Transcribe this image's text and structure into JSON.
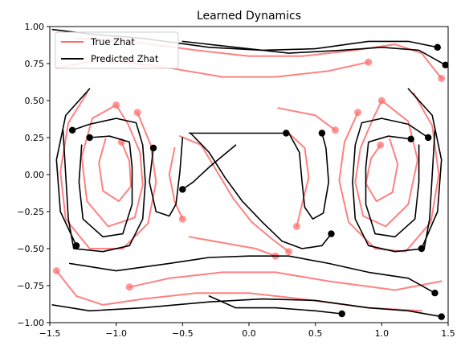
{
  "chart_data": {
    "type": "line",
    "title": "Learned Dynamics",
    "xlabel": "",
    "ylabel": "",
    "xlim": [
      -1.5,
      1.5
    ],
    "ylim": [
      -1.0,
      1.0
    ],
    "xticks": [
      -1.5,
      -1.0,
      -0.5,
      0.0,
      0.5,
      1.0,
      1.5
    ],
    "xtick_labels": [
      "−1.5",
      "−1.0",
      "−0.5",
      "0.0",
      "0.5",
      "1.0",
      "1.5"
    ],
    "yticks": [
      -1.0,
      -0.75,
      -0.5,
      -0.25,
      0.0,
      0.25,
      0.5,
      0.75,
      1.0
    ],
    "ytick_labels": [
      "−1.00",
      "−0.75",
      "−0.50",
      "−0.25",
      "0.00",
      "0.25",
      "0.50",
      "0.75",
      "1.00"
    ],
    "grid": false,
    "legend_position": "top-left",
    "series": [
      {
        "name": "True Zhat",
        "color": "#ff6b6b",
        "marker": "circle-at-end",
        "trajectories": [
          [
            [
              -1.0,
              0.47
            ],
            [
              -1.18,
              0.38
            ],
            [
              -1.26,
              0.12
            ],
            [
              -1.22,
              -0.18
            ],
            [
              -1.06,
              -0.35
            ],
            [
              -0.86,
              -0.29
            ],
            [
              -0.8,
              -0.07
            ],
            [
              -0.82,
              0.15
            ],
            [
              -0.91,
              0.34
            ],
            [
              -1.0,
              0.47
            ]
          ],
          [
            [
              -1.08,
              0.24
            ],
            [
              -1.13,
              0.08
            ],
            [
              -1.1,
              -0.11
            ],
            [
              -0.98,
              -0.18
            ],
            [
              -0.89,
              -0.08
            ],
            [
              -0.9,
              0.09
            ],
            [
              -0.96,
              0.22
            ]
          ],
          [
            [
              -1.22,
              0.55
            ],
            [
              -1.36,
              0.35
            ],
            [
              -1.42,
              0.02
            ],
            [
              -1.38,
              -0.3
            ],
            [
              -1.2,
              -0.5
            ],
            [
              -0.95,
              -0.5
            ],
            [
              -0.76,
              -0.33
            ],
            [
              -0.7,
              -0.05
            ],
            [
              -0.74,
              0.2
            ],
            [
              -0.84,
              0.42
            ]
          ],
          [
            [
              1.0,
              0.5
            ],
            [
              1.2,
              0.36
            ],
            [
              1.27,
              0.1
            ],
            [
              1.2,
              -0.2
            ],
            [
              1.03,
              -0.35
            ],
            [
              0.86,
              -0.28
            ],
            [
              0.8,
              -0.05
            ],
            [
              0.84,
              0.18
            ],
            [
              0.93,
              0.37
            ],
            [
              1.0,
              0.5
            ]
          ],
          [
            [
              1.06,
              0.24
            ],
            [
              1.12,
              0.07
            ],
            [
              1.08,
              -0.12
            ],
            [
              0.96,
              -0.18
            ],
            [
              0.88,
              -0.06
            ],
            [
              0.92,
              0.11
            ],
            [
              0.99,
              0.2
            ]
          ],
          [
            [
              1.24,
              0.55
            ],
            [
              1.38,
              0.33
            ],
            [
              1.43,
              0.0
            ],
            [
              1.37,
              -0.32
            ],
            [
              1.18,
              -0.52
            ],
            [
              0.95,
              -0.5
            ],
            [
              0.75,
              -0.32
            ],
            [
              0.68,
              -0.04
            ],
            [
              0.72,
              0.22
            ],
            [
              0.82,
              0.42
            ]
          ],
          [
            [
              -1.3,
              0.92
            ],
            [
              -0.9,
              0.9
            ],
            [
              -0.4,
              0.84
            ],
            [
              0.0,
              0.8
            ],
            [
              0.4,
              0.8
            ],
            [
              0.8,
              0.84
            ],
            [
              1.1,
              0.88
            ],
            [
              1.3,
              0.82
            ],
            [
              1.45,
              0.65
            ]
          ],
          [
            [
              -1.45,
              0.72
            ],
            [
              -1.1,
              0.78
            ],
            [
              -0.6,
              0.72
            ],
            [
              -0.2,
              0.66
            ],
            [
              0.2,
              0.66
            ],
            [
              0.6,
              0.7
            ],
            [
              0.9,
              0.76
            ]
          ],
          [
            [
              1.3,
              -0.92
            ],
            [
              0.9,
              -0.9
            ],
            [
              0.4,
              -0.84
            ],
            [
              0.0,
              -0.8
            ],
            [
              -0.4,
              -0.8
            ],
            [
              -0.8,
              -0.84
            ],
            [
              -1.1,
              -0.88
            ],
            [
              -1.3,
              -0.82
            ],
            [
              -1.45,
              -0.65
            ]
          ],
          [
            [
              1.45,
              -0.72
            ],
            [
              1.1,
              -0.78
            ],
            [
              0.6,
              -0.72
            ],
            [
              0.2,
              -0.66
            ],
            [
              -0.2,
              -0.66
            ],
            [
              -0.6,
              -0.7
            ],
            [
              -0.9,
              -0.76
            ]
          ],
          [
            [
              -0.52,
              0.26
            ],
            [
              -0.36,
              0.2
            ],
            [
              -0.24,
              0.02
            ],
            [
              -0.12,
              -0.16
            ],
            [
              0.02,
              -0.32
            ],
            [
              0.18,
              -0.44
            ],
            [
              0.3,
              -0.52
            ]
          ],
          [
            [
              0.3,
              0.28
            ],
            [
              0.42,
              0.18
            ],
            [
              0.45,
              -0.02
            ],
            [
              0.4,
              -0.2
            ],
            [
              0.36,
              -0.35
            ]
          ],
          [
            [
              -0.56,
              0.18
            ],
            [
              -0.6,
              0.0
            ],
            [
              -0.56,
              -0.18
            ],
            [
              -0.5,
              -0.3
            ]
          ],
          [
            [
              0.22,
              0.45
            ],
            [
              0.5,
              0.4
            ],
            [
              0.65,
              0.3
            ]
          ],
          [
            [
              -0.45,
              -0.42
            ],
            [
              -0.2,
              -0.46
            ],
            [
              0.05,
              -0.5
            ],
            [
              0.2,
              -0.55
            ]
          ]
        ]
      },
      {
        "name": "Predicted Zhat",
        "color": "#000000",
        "marker": "circle-at-end",
        "trajectories": [
          [
            [
              -1.48,
              0.98
            ],
            [
              -1.2,
              0.95
            ],
            [
              -0.8,
              0.92
            ],
            [
              -0.3,
              0.86
            ],
            [
              0.1,
              0.84
            ],
            [
              0.5,
              0.85
            ],
            [
              0.9,
              0.9
            ],
            [
              1.2,
              0.9
            ],
            [
              1.42,
              0.86
            ]
          ],
          [
            [
              -0.5,
              0.9
            ],
            [
              -0.1,
              0.86
            ],
            [
              0.3,
              0.82
            ],
            [
              0.7,
              0.84
            ],
            [
              1.0,
              0.86
            ],
            [
              1.28,
              0.84
            ],
            [
              1.48,
              0.74
            ]
          ],
          [
            [
              -1.4,
              0.3
            ],
            [
              -1.38,
              0.0
            ],
            [
              -1.36,
              -0.3
            ],
            [
              -1.32,
              -0.5
            ],
            [
              -1.1,
              -0.52
            ],
            [
              -0.9,
              -0.48
            ],
            [
              -0.8,
              -0.3
            ],
            [
              -0.78,
              -0.05
            ],
            [
              -0.8,
              0.2
            ],
            [
              -0.85,
              0.35
            ],
            [
              -1.0,
              0.38
            ],
            [
              -1.2,
              0.34
            ],
            [
              -1.33,
              0.3
            ]
          ],
          [
            [
              -1.26,
              0.2
            ],
            [
              -1.28,
              -0.05
            ],
            [
              -1.25,
              -0.3
            ],
            [
              -1.1,
              -0.42
            ],
            [
              -0.95,
              -0.4
            ],
            [
              -0.88,
              -0.2
            ],
            [
              -0.88,
              0.05
            ],
            [
              -0.9,
              0.22
            ],
            [
              -1.05,
              0.26
            ],
            [
              -1.2,
              0.25
            ]
          ],
          [
            [
              1.4,
              0.3
            ],
            [
              1.38,
              0.0
            ],
            [
              1.36,
              -0.3
            ],
            [
              1.32,
              -0.5
            ],
            [
              1.1,
              -0.52
            ],
            [
              0.9,
              -0.48
            ],
            [
              0.8,
              -0.3
            ],
            [
              0.78,
              -0.05
            ],
            [
              0.8,
              0.2
            ],
            [
              0.85,
              0.35
            ],
            [
              1.0,
              0.38
            ],
            [
              1.2,
              0.34
            ],
            [
              1.35,
              0.25
            ]
          ],
          [
            [
              1.28,
              0.2
            ],
            [
              1.28,
              -0.05
            ],
            [
              1.25,
              -0.3
            ],
            [
              1.1,
              -0.42
            ],
            [
              0.95,
              -0.4
            ],
            [
              0.88,
              -0.2
            ],
            [
              0.88,
              0.05
            ],
            [
              0.9,
              0.22
            ],
            [
              1.05,
              0.26
            ],
            [
              1.22,
              0.24
            ]
          ],
          [
            [
              -0.44,
              0.28
            ],
            [
              -0.3,
              0.15
            ],
            [
              -0.18,
              -0.02
            ],
            [
              -0.05,
              -0.18
            ],
            [
              0.1,
              -0.32
            ],
            [
              0.25,
              -0.45
            ],
            [
              0.4,
              -0.5
            ],
            [
              0.55,
              -0.48
            ],
            [
              0.62,
              -0.4
            ]
          ],
          [
            [
              -0.5,
              0.25
            ],
            [
              -0.52,
              0.02
            ],
            [
              -0.55,
              -0.2
            ],
            [
              -0.6,
              -0.28
            ],
            [
              -0.7,
              -0.25
            ],
            [
              -0.75,
              -0.05
            ],
            [
              -0.72,
              0.18
            ]
          ],
          [
            [
              0.3,
              0.28
            ],
            [
              0.38,
              0.15
            ],
            [
              0.4,
              -0.05
            ],
            [
              0.42,
              -0.22
            ],
            [
              0.48,
              -0.3
            ],
            [
              0.56,
              -0.26
            ],
            [
              0.6,
              -0.05
            ],
            [
              0.58,
              0.18
            ],
            [
              0.55,
              0.28
            ]
          ],
          [
            [
              -0.45,
              0.28
            ],
            [
              -0.2,
              0.28
            ],
            [
              0.05,
              0.28
            ],
            [
              0.28,
              0.28
            ]
          ],
          [
            [
              -1.35,
              -0.6
            ],
            [
              -1.0,
              -0.65
            ],
            [
              -0.6,
              -0.6
            ],
            [
              -0.3,
              -0.56
            ],
            [
              0.0,
              -0.55
            ],
            [
              0.3,
              -0.55
            ],
            [
              0.6,
              -0.6
            ],
            [
              0.9,
              -0.66
            ],
            [
              1.2,
              -0.7
            ],
            [
              1.4,
              -0.8
            ]
          ],
          [
            [
              -1.48,
              -0.88
            ],
            [
              -1.2,
              -0.92
            ],
            [
              -0.8,
              -0.9
            ],
            [
              -0.3,
              -0.86
            ],
            [
              0.1,
              -0.84
            ],
            [
              0.5,
              -0.85
            ],
            [
              0.9,
              -0.9
            ],
            [
              1.2,
              -0.92
            ],
            [
              1.45,
              -0.96
            ]
          ],
          [
            [
              -0.3,
              -0.82
            ],
            [
              -0.1,
              -0.9
            ],
            [
              0.2,
              -0.9
            ],
            [
              0.5,
              -0.92
            ],
            [
              0.7,
              -0.94
            ]
          ],
          [
            [
              -1.2,
              0.58
            ],
            [
              -1.38,
              0.4
            ],
            [
              -1.45,
              0.1
            ],
            [
              -1.42,
              -0.25
            ],
            [
              -1.3,
              -0.48
            ]
          ],
          [
            [
              1.2,
              0.58
            ],
            [
              1.38,
              0.4
            ],
            [
              1.45,
              0.1
            ],
            [
              1.42,
              -0.25
            ],
            [
              1.3,
              -0.5
            ]
          ],
          [
            [
              -0.1,
              0.2
            ],
            [
              -0.3,
              0.05
            ],
            [
              -0.42,
              -0.05
            ],
            [
              -0.5,
              -0.1
            ]
          ]
        ]
      }
    ]
  }
}
